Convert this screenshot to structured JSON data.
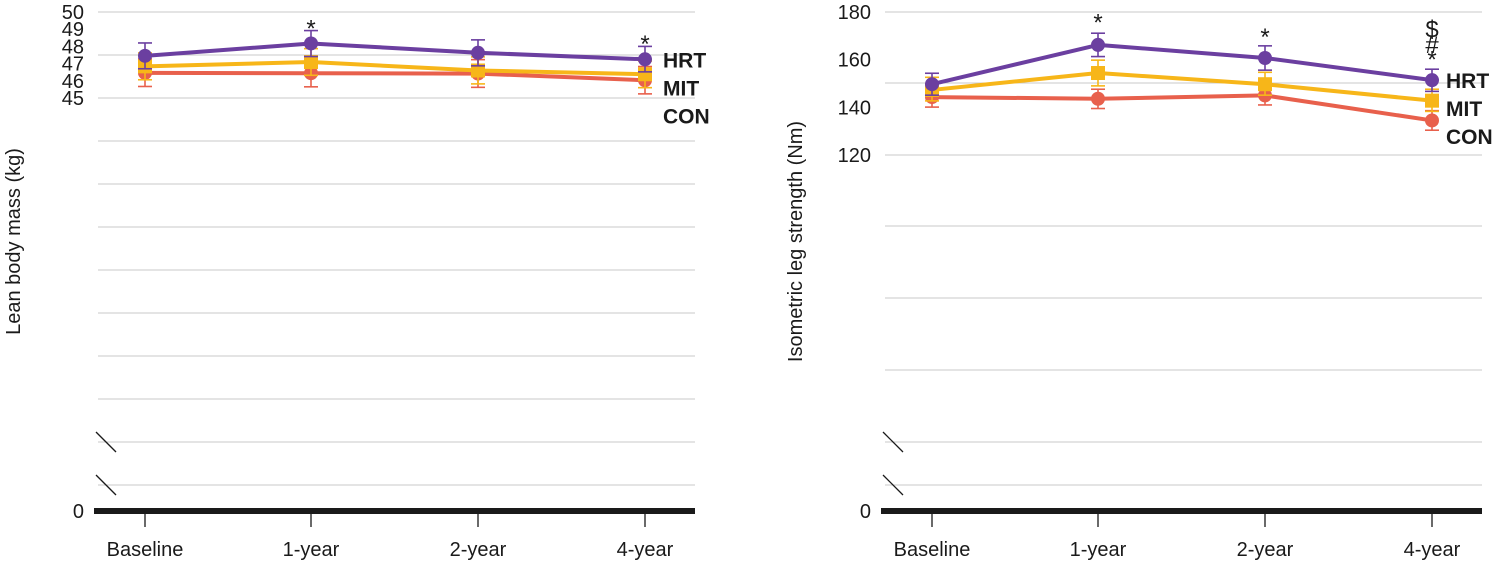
{
  "chart_data": [
    {
      "type": "line",
      "ylabel": "Lean body mass (kg)",
      "xlabel": "",
      "categories": [
        "Baseline",
        "1-year",
        "2-year",
        "4-year"
      ],
      "y_ticks": [
        "0",
        "45",
        "46",
        "47",
        "48",
        "49",
        "50"
      ],
      "ylim": [
        45,
        50
      ],
      "axis_break": true,
      "series": [
        {
          "name": "HRT",
          "color": "#6b3fa0",
          "marker": "circle",
          "values": [
            47.45,
            48.17,
            47.63,
            47.25
          ],
          "err_low": [
            46.7,
            47.41,
            46.87,
            46.52
          ],
          "err_high": [
            48.2,
            48.92,
            48.38,
            48.0
          ]
        },
        {
          "name": "MIT",
          "color": "#f7b619",
          "marker": "square",
          "values": [
            46.84,
            47.09,
            46.6,
            46.38
          ],
          "err_low": [
            46.06,
            46.32,
            45.82,
            45.6
          ],
          "err_high": [
            47.62,
            47.87,
            47.39,
            47.15
          ]
        },
        {
          "name": "CON",
          "color": "#e8604c",
          "marker": "circle",
          "values": [
            46.46,
            46.44,
            46.42,
            46.03
          ],
          "err_low": [
            45.67,
            45.65,
            45.62,
            45.24
          ],
          "err_high": [
            47.27,
            47.25,
            47.23,
            46.83
          ]
        }
      ],
      "annotations": [
        {
          "category": "1-year",
          "value": 49.1,
          "text": "*"
        },
        {
          "category": "4-year",
          "value": 48.2,
          "text": "*"
        }
      ]
    },
    {
      "type": "line",
      "ylabel": "Isometric leg strength (Nm)",
      "xlabel": "",
      "categories": [
        "Baseline",
        "1-year",
        "2-year",
        "4-year"
      ],
      "y_ticks": [
        "0",
        "120",
        "140",
        "160",
        "180"
      ],
      "ylim": [
        120,
        180
      ],
      "axis_break": true,
      "series": [
        {
          "name": "HRT",
          "color": "#6b3fa0",
          "marker": "circle",
          "values": [
            149.7,
            166.2,
            160.7,
            151.4
          ],
          "err_low": [
            145.1,
            161.3,
            155.6,
            146.7
          ],
          "err_high": [
            154.3,
            171.1,
            165.8,
            156.0
          ]
        },
        {
          "name": "MIT",
          "color": "#f7b619",
          "marker": "square",
          "values": [
            147.3,
            154.4,
            149.7,
            142.8
          ],
          "err_low": [
            142.7,
            149.0,
            145.1,
            138.3
          ],
          "err_high": [
            152.6,
            159.8,
            154.7,
            147.6
          ]
        },
        {
          "name": "CON",
          "color": "#e8604c",
          "marker": "circle",
          "values": [
            144.3,
            143.6,
            145.0,
            134.5
          ],
          "err_low": [
            140.1,
            139.5,
            141.0,
            130.4
          ],
          "err_high": [
            148.4,
            147.6,
            149.0,
            138.6
          ]
        }
      ],
      "annotations": [
        {
          "category": "1-year",
          "value": 176.0,
          "text": "*"
        },
        {
          "category": "2-year",
          "value": 170.0,
          "text": "*"
        },
        {
          "category": "4-year",
          "value": 173.0,
          "text": "$"
        },
        {
          "category": "4-year",
          "value": 166.5,
          "text": "#"
        },
        {
          "category": "4-year",
          "value": 160.5,
          "text": "*"
        }
      ]
    }
  ]
}
